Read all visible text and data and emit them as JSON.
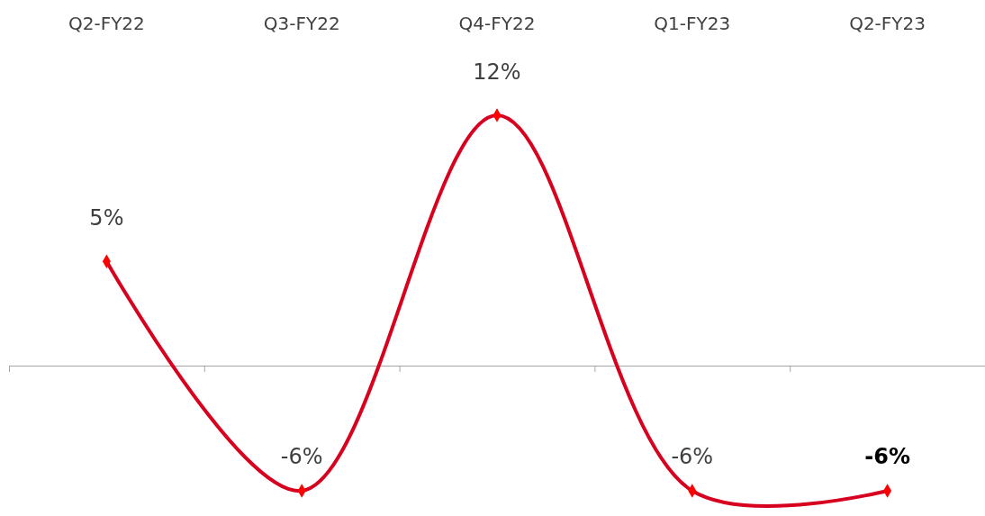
{
  "chart_data": {
    "type": "line",
    "categories": [
      "Q2-FY22",
      "Q3-FY22",
      "Q4-FY22",
      "Q1-FY23",
      "Q2-FY23"
    ],
    "series": [
      {
        "color": "#d7001e",
        "values": [
          5,
          -6,
          12,
          -6,
          -6
        ],
        "value_labels": [
          "5%",
          "-6%",
          "12%",
          "-6%",
          "-6%"
        ]
      }
    ],
    "marker": "diamond",
    "ref_lines": [
      {
        "axis": "y",
        "value": 0,
        "color": "#a6a6a6"
      }
    ]
  }
}
